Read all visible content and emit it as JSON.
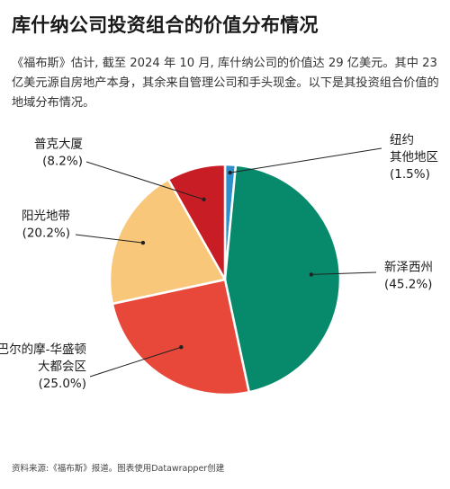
{
  "header": {
    "title": "库什纳公司投资组合的价值分布情况",
    "subtitle": "《福布斯》估计, 截至 2024 年 10 月, 库什纳公司的价值达 29 亿美元。其中 23 亿美元源自房地产本身，其余来自管理公司和手头现金。以下是其投资组合价值的地域分布情况。"
  },
  "chart_data": {
    "type": "pie",
    "title": "库什纳公司投资组合的价值分布情况",
    "unit": "%",
    "slices": [
      {
        "name": "纽约其他地区",
        "label_lines": [
          "纽约",
          "其他地区"
        ],
        "value": 1.5,
        "value_label": "(1.5%)",
        "color": "#2f8fcb"
      },
      {
        "name": "新泽西州",
        "label_lines": [
          "新泽西州"
        ],
        "value": 45.2,
        "value_label": "(45.2%)",
        "color": "#078a6b"
      },
      {
        "name": "巴尔的摩-华盛顿大都会区",
        "label_lines": [
          "巴尔的摩-华盛顿",
          "大都会区"
        ],
        "value": 25.0,
        "value_label": "(25.0%)",
        "color": "#e8483a"
      },
      {
        "name": "阳光地带",
        "label_lines": [
          "阳光地带"
        ],
        "value": 20.2,
        "value_label": "(20.2%)",
        "color": "#f8c779"
      },
      {
        "name": "普克大厦",
        "label_lines": [
          "普克大厦"
        ],
        "value": 8.2,
        "value_label": "(8.2%)",
        "color": "#c81d25"
      }
    ],
    "start_position": "12 o'clock, clockwise",
    "slice_border_color": "#ffffff"
  },
  "footer": {
    "source": "资料来源:《福布斯》报道。图表使用Datawrapper创建"
  }
}
